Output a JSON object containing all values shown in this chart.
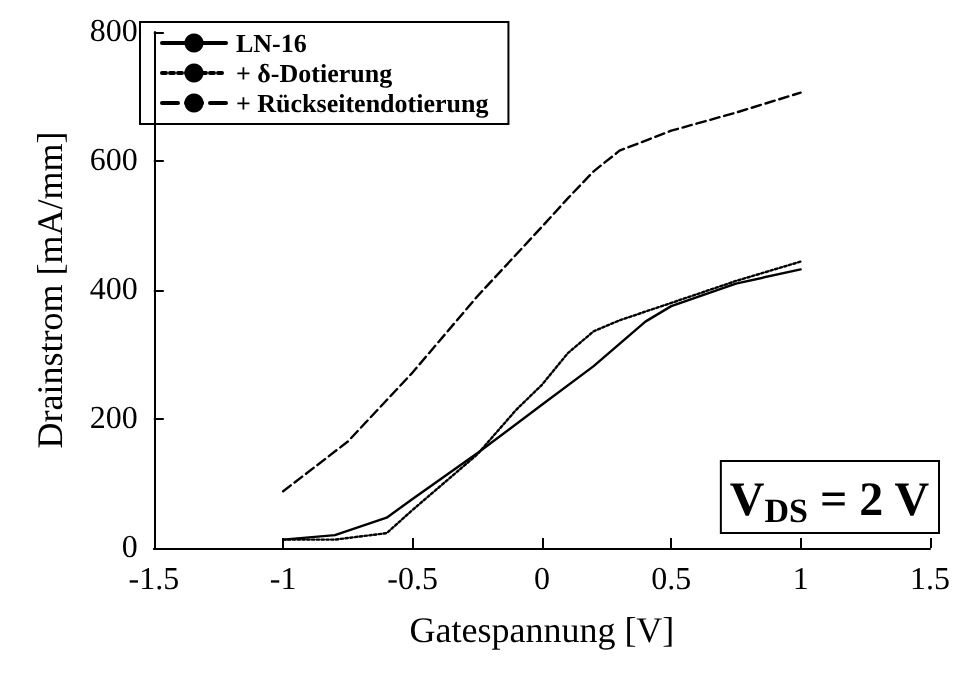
{
  "chart_data": {
    "type": "line",
    "xlabel": "Gatespannung [V]",
    "ylabel": "Drainstrom [mA/mm]",
    "xlim": [
      -1.5,
      1.5
    ],
    "xticks": [
      -1.5,
      -1,
      -0.5,
      0,
      0.5,
      1,
      1.5
    ],
    "ylim": [
      0,
      800
    ],
    "yticks": [
      0,
      200,
      400,
      600,
      800
    ],
    "grid": false,
    "legend": "top left",
    "marker": "none",
    "annotations": [
      "V$_{DS}$ = 2 V"
    ],
    "series": [
      {
        "name": "LN-16",
        "color": "#000000",
        "line_style": "solid",
        "x": [
          -1,
          -0.8,
          -0.6,
          -0.5,
          -0.25,
          0,
          0.2,
          0.4,
          0.5,
          0.75,
          1
        ],
        "values": [
          13,
          20,
          47,
          76,
          147,
          222,
          282,
          351,
          375,
          410,
          432
        ]
      },
      {
        "name": "+ δ-Dotierung",
        "color": "#000000",
        "line_style": "dotted",
        "x": [
          -1,
          -0.8,
          -0.6,
          -0.5,
          -0.25,
          -0.1,
          0,
          0.1,
          0.2,
          0.3,
          0.5,
          0.75,
          1
        ],
        "values": [
          13,
          13,
          23,
          59,
          145,
          214,
          253,
          302,
          336,
          353,
          380,
          414,
          444
        ]
      },
      {
        "name": "+ Rückseitendotierung",
        "color": "#000000",
        "line_style": "dashed",
        "x": [
          -1,
          -0.75,
          -0.5,
          -0.25,
          0,
          0.1,
          0.2,
          0.3,
          0.5,
          0.75,
          1
        ],
        "values": [
          88,
          165,
          272,
          390,
          498,
          542,
          584,
          616,
          647,
          675,
          706
        ]
      }
    ]
  }
}
